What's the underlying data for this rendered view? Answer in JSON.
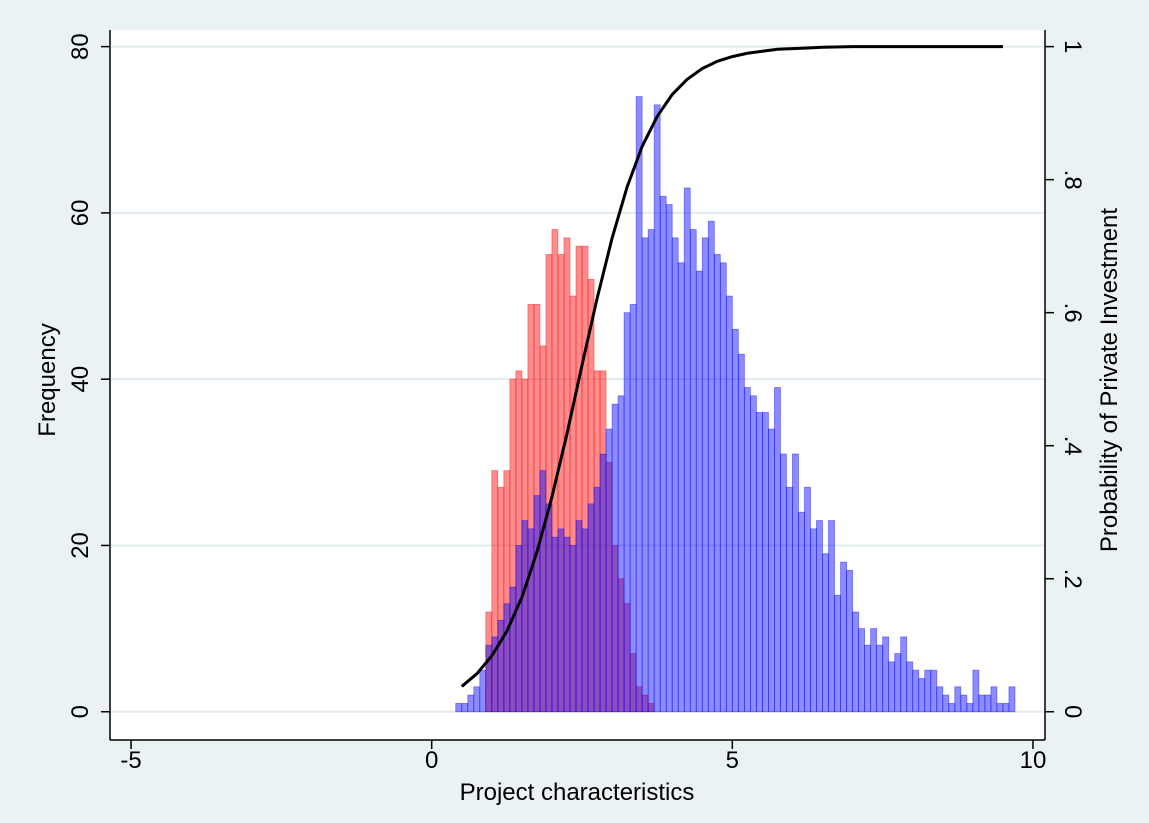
{
  "chart_data": {
    "type": "histogram",
    "xlabel": "Project characteristics",
    "ylabel": "Frequency",
    "y2label": "Probability of Private Investment",
    "xlim": [
      -5.35,
      10.2
    ],
    "ylim": [
      -3.4,
      82
    ],
    "y2lim": [
      -0.0425,
      1.025
    ],
    "xticks": [
      -5,
      0,
      5,
      10
    ],
    "yticks": [
      0,
      20,
      40,
      60,
      80
    ],
    "y2ticks": [
      0,
      {
        "value": 0.2,
        "label": ".2"
      },
      {
        "value": 0.4,
        "label": ".4"
      },
      {
        "value": 0.6,
        "label": ".6"
      },
      {
        "value": 0.8,
        "label": ".8"
      },
      1
    ],
    "grid": true,
    "series": [
      {
        "type": "histogram",
        "color": "#ff0000",
        "opacity": 0.45,
        "bins": [
          0.9,
          1.0,
          1.1,
          1.2,
          1.3,
          1.4,
          1.5,
          1.6,
          1.7,
          1.8,
          1.9,
          2.0,
          2.1,
          2.2,
          2.3,
          2.4,
          2.5,
          2.6,
          2.7,
          2.8,
          2.9,
          3.0,
          3.1,
          3.2,
          3.3,
          3.4,
          3.5,
          3.6,
          3.7
        ],
        "values": [
          12,
          29,
          27,
          29,
          40,
          41,
          40,
          49,
          49,
          44,
          55,
          58,
          55,
          57,
          50,
          56,
          56,
          52,
          41,
          41,
          30,
          20,
          16,
          13,
          7,
          3,
          2,
          1
        ]
      },
      {
        "type": "histogram",
        "color": "#0000ff",
        "opacity": 0.45,
        "bins": [
          0.4,
          0.5,
          0.6,
          0.7,
          0.8,
          0.9,
          1.0,
          1.1,
          1.2,
          1.3,
          1.4,
          1.5,
          1.6,
          1.7,
          1.8,
          1.9,
          2.0,
          2.1,
          2.2,
          2.3,
          2.4,
          2.5,
          2.6,
          2.7,
          2.8,
          2.9,
          3.0,
          3.1,
          3.2,
          3.3,
          3.4,
          3.5,
          3.6,
          3.7,
          3.8,
          3.9,
          4.0,
          4.1,
          4.2,
          4.3,
          4.4,
          4.5,
          4.6,
          4.7,
          4.8,
          4.9,
          5.0,
          5.1,
          5.2,
          5.3,
          5.4,
          5.5,
          5.6,
          5.7,
          5.8,
          5.9,
          6.0,
          6.1,
          6.2,
          6.3,
          6.4,
          6.5,
          6.6,
          6.7,
          6.8,
          6.9,
          7.0,
          7.1,
          7.2,
          7.3,
          7.4,
          7.5,
          7.6,
          7.7,
          7.8,
          7.9,
          8.0,
          8.1,
          8.2,
          8.3,
          8.4,
          8.5,
          8.6,
          8.7,
          8.8,
          8.9,
          9.0,
          9.1,
          9.2,
          9.3,
          9.4,
          9.5,
          9.6,
          9.7
        ],
        "values": [
          1,
          1,
          2,
          3,
          5,
          8,
          9,
          11,
          13,
          15,
          20,
          23,
          22,
          26,
          29,
          25,
          21,
          22,
          21,
          20,
          23,
          22,
          25,
          27,
          31,
          34,
          37,
          38,
          48,
          49,
          74,
          57,
          58,
          73,
          62,
          61,
          57,
          54,
          63,
          58,
          53,
          57,
          59,
          55,
          54,
          50,
          46,
          43,
          39,
          38,
          36,
          36,
          34,
          39,
          31,
          27,
          31,
          24,
          27,
          22,
          23,
          19,
          23,
          14,
          18,
          17,
          12,
          10,
          8,
          10,
          8,
          9,
          6,
          7,
          9,
          6,
          5,
          4,
          5,
          5,
          3,
          2,
          1,
          3,
          2,
          1,
          5,
          2,
          2,
          3,
          1,
          1,
          3
        ]
      },
      {
        "type": "line",
        "axis": "y2",
        "color": "#000000",
        "x": [
          0.5,
          0.75,
          1.0,
          1.25,
          1.5,
          1.75,
          2.0,
          2.25,
          2.5,
          2.75,
          3.0,
          3.25,
          3.5,
          3.75,
          4.0,
          4.25,
          4.5,
          4.75,
          5.0,
          5.25,
          5.5,
          5.75,
          6.0,
          6.25,
          6.5,
          7.0,
          7.5,
          8.0,
          8.5,
          9.0,
          9.5
        ],
        "values": [
          0.038,
          0.057,
          0.084,
          0.121,
          0.172,
          0.24,
          0.323,
          0.418,
          0.521,
          0.621,
          0.712,
          0.789,
          0.85,
          0.895,
          0.928,
          0.951,
          0.967,
          0.978,
          0.985,
          0.99,
          0.993,
          0.996,
          0.997,
          0.998,
          0.999,
          1,
          1,
          1,
          1,
          1,
          1
        ]
      }
    ]
  }
}
